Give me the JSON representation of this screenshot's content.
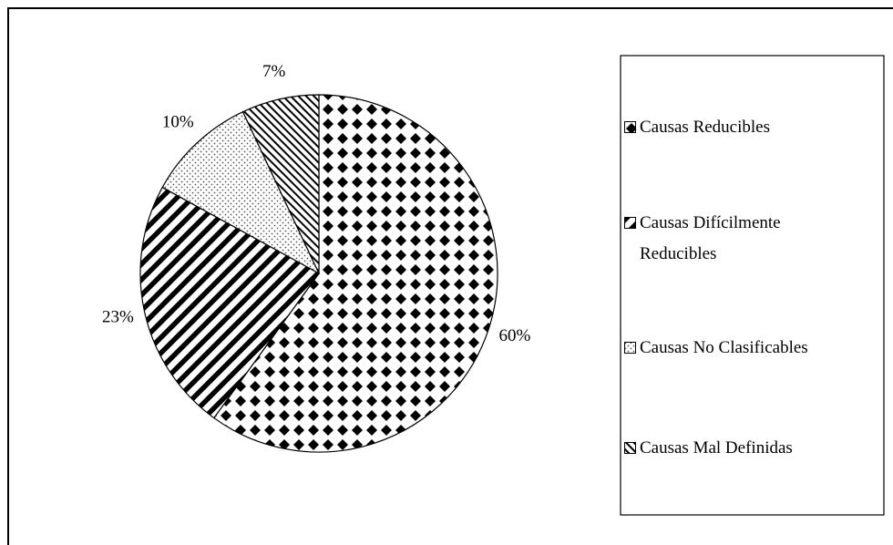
{
  "chart_data": {
    "type": "pie",
    "categories": [
      "Causas Reducibles",
      "Causas Difícilmente Reducibles",
      "Causas No Clasificables",
      "Causas Mal Definidas"
    ],
    "values": [
      60,
      23,
      10,
      7
    ],
    "value_labels": [
      "60%",
      "23%",
      "10%",
      "7%"
    ]
  }
}
